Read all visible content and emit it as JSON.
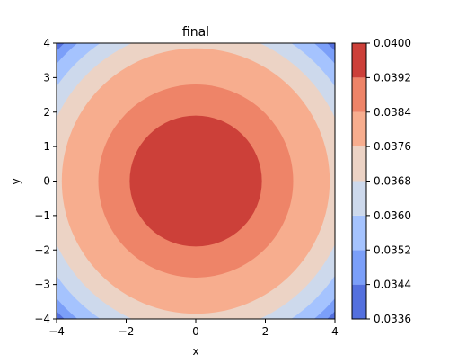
{
  "chart_data": {
    "type": "contourf",
    "title": "final",
    "xlabel": "x",
    "ylabel": "y",
    "xlim": [
      -4,
      4
    ],
    "ylim": [
      -4,
      4
    ],
    "xticks": [
      -4,
      -2,
      0,
      2,
      4
    ],
    "yticks": [
      -4,
      -3,
      -2,
      -1,
      0,
      1,
      2,
      3,
      4
    ],
    "xtick_labels": [
      "−4",
      "−2",
      "0",
      "2",
      "4"
    ],
    "ytick_labels": [
      "−4",
      "−3",
      "−2",
      "−1",
      "0",
      "1",
      "2",
      "3",
      "4"
    ],
    "shape": "concentric-circles",
    "center": [
      0,
      0
    ],
    "contour_radii": [
      5.5,
      5.25,
      4.85,
      4.4,
      3.85,
      2.8,
      1.9
    ],
    "colorbar": {
      "levels": [
        0.0336,
        0.0344,
        0.0352,
        0.036,
        0.0368,
        0.0376,
        0.0384,
        0.0392,
        0.04
      ],
      "tick_labels": [
        "0.0336",
        "0.0344",
        "0.0352",
        "0.0360",
        "0.0368",
        "0.0376",
        "0.0384",
        "0.0392",
        "0.0400"
      ],
      "colormap": "coolwarm",
      "colors": [
        "#5470de",
        "#7b9ff9",
        "#a5c3fe",
        "#cdd9ec",
        "#ecd3c5",
        "#f7ad8e",
        "#ee8468",
        "#cc4039"
      ]
    },
    "grid": false
  }
}
